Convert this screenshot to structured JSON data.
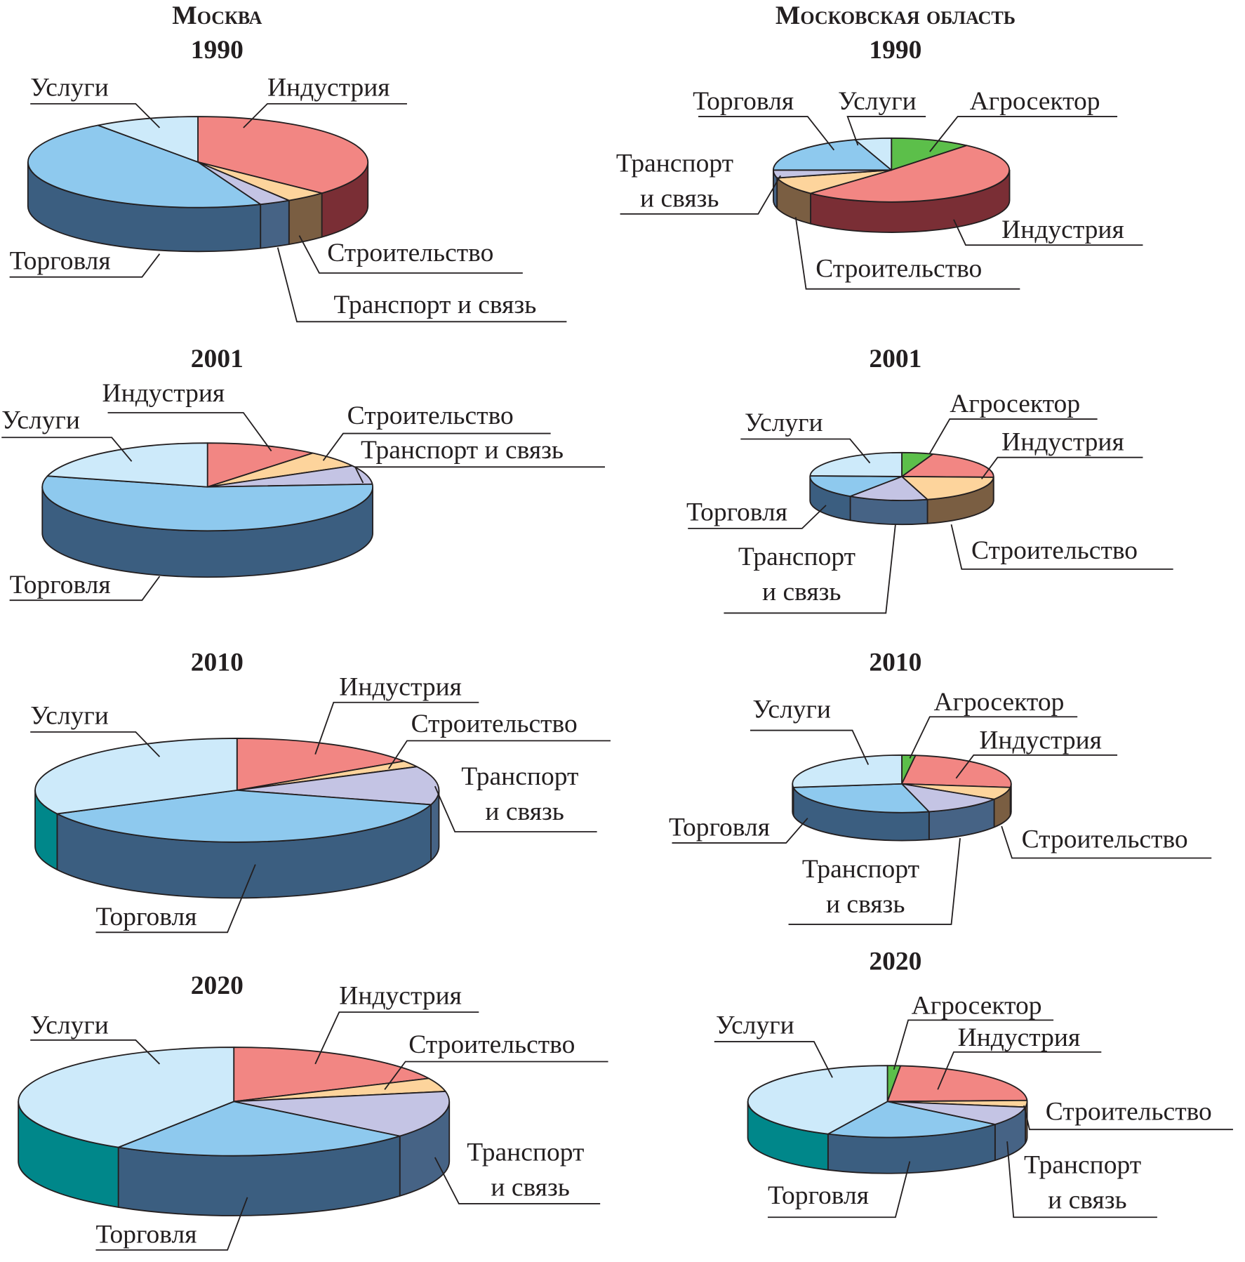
{
  "regions": [
    "Москва",
    "Московская область"
  ],
  "colors": {
    "Индустрия": {
      "top": "#f28683",
      "side": "#7a2e35"
    },
    "Строительство": {
      "top": "#fdd49c",
      "side": "#7a5e42"
    },
    "Транспорт и связь": {
      "top": "#c4c4e4",
      "side": "#466385"
    },
    "Торговля": {
      "top": "#8ec9ee",
      "side": "#3b5e80"
    },
    "Услуги": {
      "top": "#cdeafa",
      "side": "#00878a"
    },
    "Агросектор": {
      "top": "#5cbf4a",
      "side": "#2f7c2c"
    }
  },
  "chart_data": [
    {
      "type": "pie",
      "region": "Москва",
      "year": "1990",
      "categories": [
        "Индустрия",
        "Строительство",
        "Транспорт и связь",
        "Торговля",
        "Услуги"
      ],
      "values": [
        37,
        4,
        3,
        46,
        10
      ]
    },
    {
      "type": "pie",
      "region": "Москва",
      "year": "2001",
      "categories": [
        "Индустрия",
        "Строительство",
        "Транспорт и связь",
        "Торговля",
        "Услуги"
      ],
      "values": [
        11,
        6,
        7,
        55,
        21
      ]
    },
    {
      "type": "pie",
      "region": "Москва",
      "year": "2010",
      "categories": [
        "Индустрия",
        "Строительство",
        "Транспорт и связь",
        "Торговля",
        "Услуги"
      ],
      "values": [
        15.5,
        2,
        12,
        38,
        32.5
      ]
    },
    {
      "type": "pie",
      "region": "Москва",
      "year": "2020",
      "categories": [
        "Индустрия",
        "Строительство",
        "Транспорт и связь",
        "Торговля",
        "Услуги"
      ],
      "values": [
        18,
        4,
        14,
        23,
        41
      ]
    },
    {
      "type": "pie",
      "region": "Московская область",
      "year": "1990",
      "categories": [
        "Агросектор",
        "Индустрия",
        "Строительство",
        "Транспорт и связь",
        "Торговля",
        "Услуги"
      ],
      "values": [
        11,
        51,
        9,
        4,
        20,
        5
      ]
    },
    {
      "type": "pie",
      "region": "Московская область",
      "year": "2001",
      "categories": [
        "Агросектор",
        "Индустрия",
        "Строительство",
        "Транспорт и связь",
        "Торговля",
        "Услуги"
      ],
      "values": [
        5.5,
        20,
        20,
        14,
        16,
        24.5
      ]
    },
    {
      "type": "pie",
      "region": "Московская область",
      "year": "2010",
      "categories": [
        "Агросектор",
        "Индустрия",
        "Строительство",
        "Транспорт и связь",
        "Торговля",
        "Услуги"
      ],
      "values": [
        2,
        25,
        7,
        12,
        27,
        27
      ]
    },
    {
      "type": "pie",
      "region": "Московская область",
      "year": "2020",
      "categories": [
        "Агросектор",
        "Индустрия",
        "Строительство",
        "Транспорт и связь",
        "Торговля",
        "Услуги"
      ],
      "values": [
        1.5,
        23,
        3,
        8.5,
        21,
        43
      ]
    }
  ]
}
